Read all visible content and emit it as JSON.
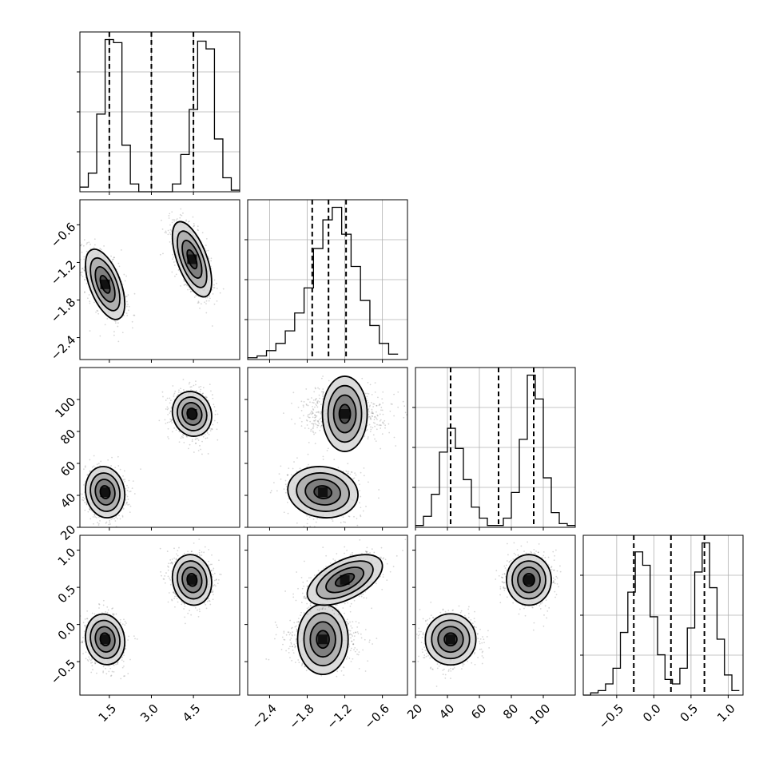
{
  "chart_data": {
    "type": "corner",
    "parameters": [
      {
        "id": "p0",
        "range": [
          0.45,
          6.15
        ],
        "ticks": [
          {
            "v": 1.5,
            "label": "1.5"
          },
          {
            "v": 3.0,
            "label": "3.0"
          },
          {
            "v": 4.5,
            "label": "4.5"
          }
        ]
      },
      {
        "id": "p1",
        "range": [
          -2.75,
          -0.2
        ],
        "ticks": [
          {
            "v": -2.4,
            "label": "−2.4"
          },
          {
            "v": -1.8,
            "label": "−1.8"
          },
          {
            "v": -1.2,
            "label": "−1.2"
          },
          {
            "v": -0.6,
            "label": "−0.6"
          }
        ]
      },
      {
        "id": "p2",
        "range": [
          20,
          120
        ],
        "ticks": [
          {
            "v": 20,
            "label": "20"
          },
          {
            "v": 40,
            "label": "40"
          },
          {
            "v": 60,
            "label": "60"
          },
          {
            "v": 80,
            "label": "80"
          },
          {
            "v": 100,
            "label": "100"
          }
        ]
      },
      {
        "id": "p3",
        "range": [
          -0.95,
          1.2
        ],
        "ticks": [
          {
            "v": -0.5,
            "label": "−0.5"
          },
          {
            "v": 0.0,
            "label": "0.0"
          },
          {
            "v": 0.5,
            "label": "0.5"
          },
          {
            "v": 1.0,
            "label": "1.0"
          }
        ]
      }
    ],
    "histograms": [
      {
        "param": "p0",
        "quantiles": [
          1.5,
          3.0,
          4.5
        ],
        "edges": [
          0.45,
          0.75,
          1.05,
          1.35,
          1.65,
          1.95,
          2.25,
          2.55,
          2.85,
          3.15,
          3.45,
          3.75,
          4.05,
          4.35,
          4.65,
          4.95,
          5.25,
          5.55,
          5.85,
          6.15
        ],
        "counts": [
          3,
          12,
          50,
          98,
          96,
          30,
          5,
          0,
          0,
          0,
          0,
          5,
          24,
          53,
          97,
          92,
          34,
          9,
          1
        ]
      },
      {
        "param": "p1",
        "quantiles": [
          -1.72,
          -1.46,
          -1.18
        ],
        "edges": [
          -2.75,
          -2.6,
          -2.45,
          -2.3,
          -2.15,
          -2.0,
          -1.85,
          -1.7,
          -1.55,
          -1.4,
          -1.25,
          -1.1,
          -0.95,
          -0.8,
          -0.65,
          -0.5,
          -0.35
        ],
        "counts": [
          1,
          2,
          5,
          9,
          16,
          26,
          40,
          62,
          78,
          85,
          70,
          52,
          33,
          19,
          9,
          3
        ]
      },
      {
        "param": "p2",
        "quantiles": [
          42,
          72,
          94
        ],
        "edges": [
          20,
          25,
          30,
          35,
          40,
          45,
          50,
          55,
          60,
          65,
          70,
          75,
          80,
          85,
          90,
          95,
          100,
          105,
          110,
          115,
          120
        ],
        "counts": [
          1,
          6,
          18,
          41,
          54,
          43,
          26,
          11,
          5,
          1,
          1,
          5,
          19,
          48,
          83,
          70,
          27,
          8,
          2,
          1
        ]
      },
      {
        "param": "p3",
        "quantiles": [
          -0.27,
          0.23,
          0.68
        ],
        "edges": [
          -0.95,
          -0.85,
          -0.75,
          -0.65,
          -0.55,
          -0.45,
          -0.35,
          -0.25,
          -0.15,
          -0.05,
          0.05,
          0.15,
          0.25,
          0.35,
          0.45,
          0.55,
          0.65,
          0.75,
          0.85,
          0.95,
          1.05,
          1.15
        ],
        "counts": [
          0,
          1,
          2,
          5,
          12,
          28,
          46,
          64,
          58,
          35,
          18,
          7,
          5,
          12,
          30,
          55,
          68,
          48,
          25,
          9,
          2
        ]
      }
    ],
    "scatter_panels": [
      {
        "x": "p0",
        "y": "p1",
        "clusters": [
          {
            "cx": 1.35,
            "cy": -1.55,
            "sx": 0.35,
            "sy": 0.28,
            "rho": -0.55
          },
          {
            "cx": 4.45,
            "cy": -1.15,
            "sx": 0.35,
            "sy": 0.3,
            "rho": -0.6
          }
        ]
      },
      {
        "x": "p0",
        "y": "p2",
        "clusters": [
          {
            "cx": 1.35,
            "cy": 42,
            "sx": 0.35,
            "sy": 8,
            "rho": -0.1
          },
          {
            "cx": 4.45,
            "cy": 91,
            "sx": 0.35,
            "sy": 7,
            "rho": -0.1
          }
        ]
      },
      {
        "x": "p0",
        "y": "p3",
        "clusters": [
          {
            "cx": 1.35,
            "cy": -0.2,
            "sx": 0.35,
            "sy": 0.17,
            "rho": -0.1
          },
          {
            "cx": 4.45,
            "cy": 0.6,
            "sx": 0.35,
            "sy": 0.17,
            "rho": -0.1
          }
        ]
      },
      {
        "x": "p1",
        "y": "p2",
        "clusters": [
          {
            "cx": -1.55,
            "cy": 42,
            "sx": 0.28,
            "sy": 8,
            "rho": -0.1
          },
          {
            "cx": -1.2,
            "cy": 91,
            "sx": 0.3,
            "sy": 7,
            "rho": 0.0
          }
        ]
      },
      {
        "x": "p1",
        "y": "p3",
        "clusters": [
          {
            "cx": -1.55,
            "cy": -0.2,
            "sx": 0.28,
            "sy": 0.17,
            "rho": 0.0
          },
          {
            "cx": -1.2,
            "cy": 0.6,
            "sx": 0.3,
            "sy": 0.17,
            "rho": 0.55
          }
        ]
      },
      {
        "x": "p2",
        "y": "p3",
        "clusters": [
          {
            "cx": 42,
            "cy": -0.2,
            "sx": 8,
            "sy": 0.17,
            "rho": 0.0
          },
          {
            "cx": 91,
            "cy": 0.6,
            "sx": 7,
            "sy": 0.17,
            "rho": 0.0
          }
        ]
      }
    ],
    "contour_levels_sigma": [
      0.5,
      1.0,
      1.5,
      2.0
    ],
    "grid": true
  }
}
